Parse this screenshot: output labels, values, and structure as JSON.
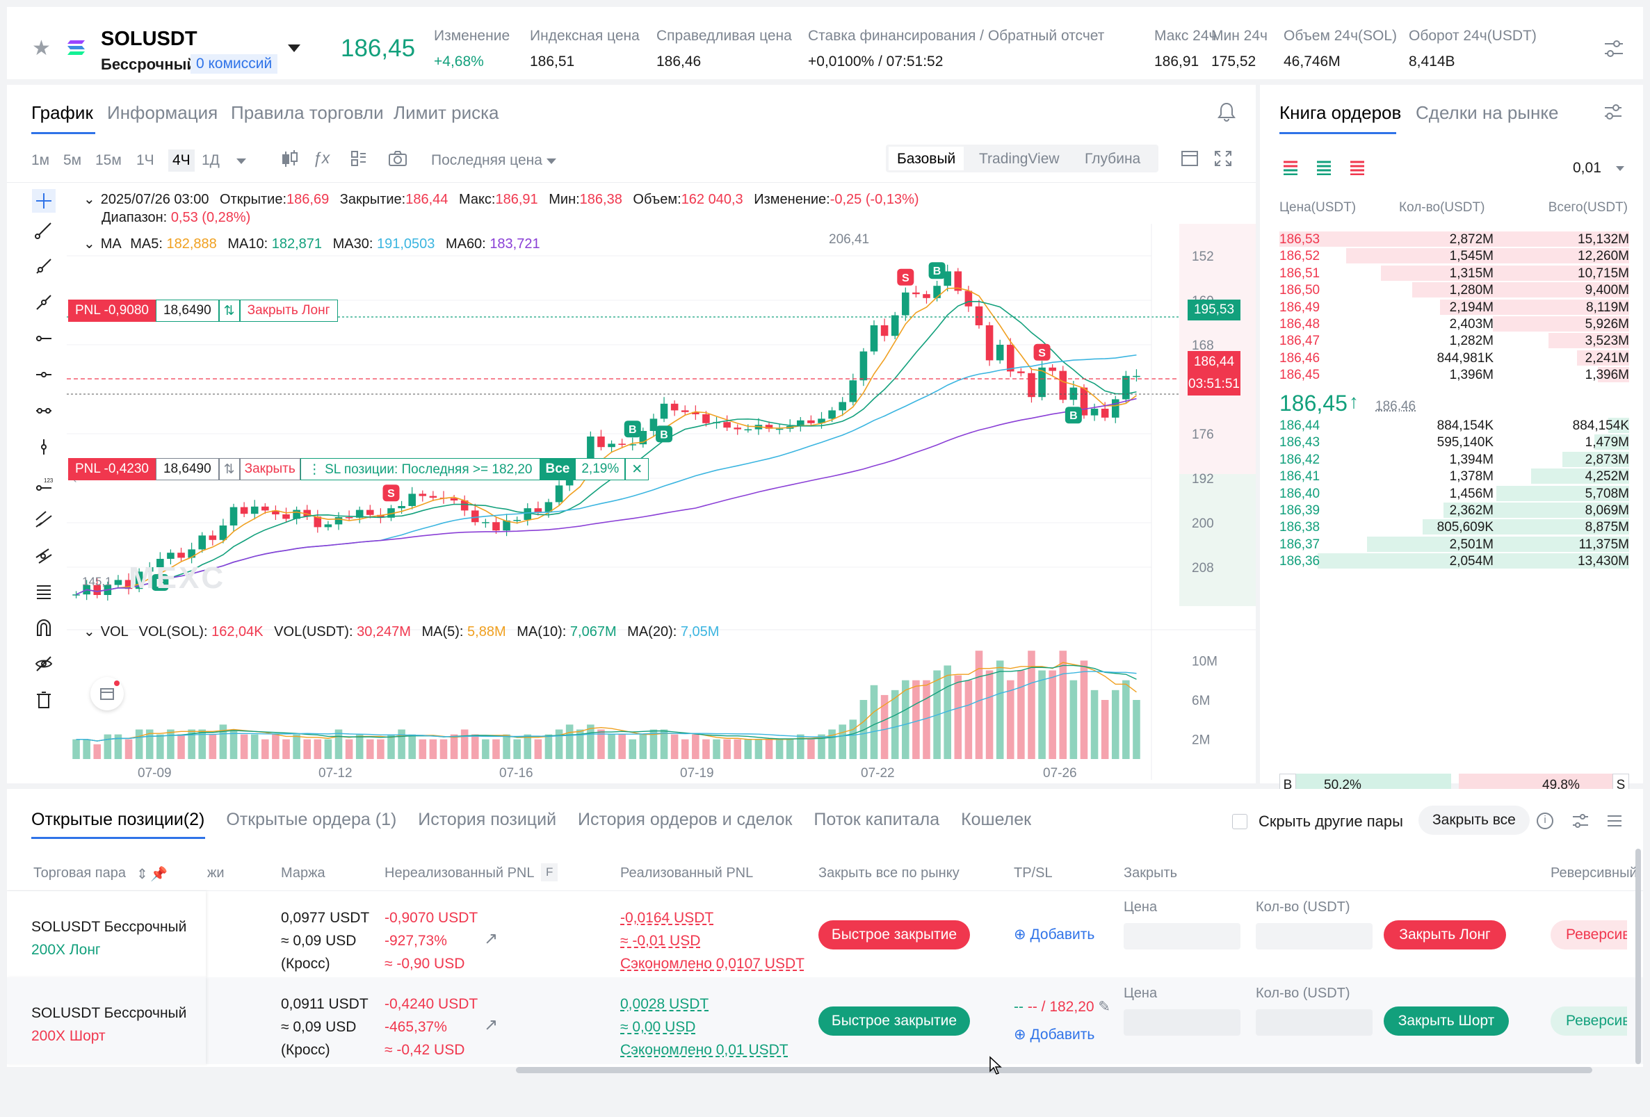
{
  "header": {
    "symbol": "SOLUSDT",
    "contract_type": "Бессрочный",
    "fee_badge": "0 комиссий",
    "last_price": "186,45",
    "stats": [
      {
        "label": "Изменение",
        "value": "+4,68%"
      },
      {
        "label": "Индексная цена",
        "value": "186,51"
      },
      {
        "label": "Справедливая цена",
        "value": "186,46"
      },
      {
        "label": "Ставка финансирования / Обратный отсчет",
        "value": "+0,0100% / 07:51:52"
      },
      {
        "label": "Макс 24ч",
        "value": "186,91"
      },
      {
        "label": "Мин 24ч",
        "value": "175,52"
      },
      {
        "label": "Объем 24ч(SOL)",
        "value": "46,746M"
      },
      {
        "label": "Оборот 24ч(USDT)",
        "value": "8,414B"
      }
    ]
  },
  "chart_panel": {
    "tabs": [
      "График",
      "Информация",
      "Правила торговли",
      "Лимит риска"
    ],
    "active_tab": "График",
    "intervals": [
      "1м",
      "5м",
      "15м",
      "1Ч",
      "4Ч",
      "1Д"
    ],
    "active_interval": "4Ч",
    "price_source": "Последняя цена",
    "views": [
      "Базовый",
      "TradingView",
      "Глубина"
    ],
    "active_view": "Базовый",
    "ohlc": {
      "date": "2025/07/26 03:00",
      "open_label": "Открытие:",
      "open": "186,69",
      "close_label": "Закрытие:",
      "close": "186,44",
      "high_label": "Макс:",
      "high": "186,91",
      "low_label": "Мин:",
      "low": "186,38",
      "volume_label": "Объем:",
      "volume": "162 040,3",
      "change_label": "Изменение:",
      "change": "-0,25 (-0,13%)",
      "range_label": "Диапазон:",
      "range": "0,53 (0,28%)"
    },
    "ma": {
      "title": "MA",
      "items": [
        {
          "label": "MA5:",
          "value": "182,888",
          "color": "#f0a020"
        },
        {
          "label": "MA10:",
          "value": "182,871",
          "color": "#12a07c"
        },
        {
          "label": "MA30:",
          "value": "191,0503",
          "color": "#3bb5e0"
        },
        {
          "label": "MA60:",
          "value": "183,721",
          "color": "#8a3fd6"
        }
      ]
    },
    "vol": {
      "title": "VOL",
      "items": [
        {
          "label": "VOL(SOL):",
          "value": "162,04K",
          "color": "#f0374e"
        },
        {
          "label": "VOL(USDT):",
          "value": "30,247M",
          "color": "#f0374e"
        },
        {
          "label": "MA(5):",
          "value": "5,88M",
          "color": "#f0a020"
        },
        {
          "label": "MA(10):",
          "value": "7,067M",
          "color": "#12a07c"
        },
        {
          "label": "MA(20):",
          "value": "7,05M",
          "color": "#3bb5e0"
        }
      ]
    },
    "position_lines": [
      {
        "pnl": "PNL -0,9080",
        "qty": "18,6490",
        "action": "Закрыть Лонг",
        "price_tag": "195,53"
      },
      {
        "pnl": "PNL -0,4230",
        "qty": "18,6490",
        "action": "Закрыть",
        "sl_text": "SL позиции: Последняя >= 182,20",
        "all": "Все",
        "pct": "2,19%"
      }
    ],
    "current_price_tag": "186,44",
    "countdown_tag": "03:51:51",
    "peak_label": "206,41",
    "low_label": "145,1",
    "watermark": "MEXC",
    "y_ticks": [
      "208",
      "200",
      "192",
      "176",
      "168",
      "160",
      "152"
    ],
    "vol_ticks": [
      "10M",
      "6M",
      "2M"
    ],
    "x_ticks": [
      "07-09",
      "07-12",
      "07-16",
      "07-19",
      "07-22",
      "07-26"
    ]
  },
  "chart_data": {
    "type": "candlestick",
    "y_range": [
      145,
      210
    ],
    "y_ticks": [
      152,
      160,
      168,
      176,
      192,
      200,
      208
    ],
    "x_ticks": [
      "07-09",
      "07-12",
      "07-16",
      "07-19",
      "07-22",
      "07-26"
    ],
    "candles": [
      [
        147,
        147.1
      ],
      [
        147.1,
        148.8
      ],
      [
        148.8,
        147
      ],
      [
        147,
        148.8
      ],
      [
        148.8,
        149.7
      ],
      [
        149.7,
        148.1
      ],
      [
        148.1,
        151.2
      ],
      [
        151.2,
        152
      ],
      [
        152,
        153.5
      ],
      [
        153.5,
        154.6
      ],
      [
        154.6,
        153.7
      ],
      [
        153.7,
        155.2
      ],
      [
        155.2,
        157.7
      ],
      [
        157.7,
        156.9
      ],
      [
        156.9,
        159.5
      ],
      [
        159.5,
        162.8
      ],
      [
        162.8,
        161.6
      ],
      [
        161.6,
        162.9
      ],
      [
        162.9,
        162.2
      ],
      [
        162.2,
        161.5
      ],
      [
        161.5,
        160.7
      ],
      [
        160.7,
        162.3
      ],
      [
        162.3,
        161.1
      ],
      [
        161.1,
        159.2
      ],
      [
        159.2,
        159.7
      ],
      [
        159.7,
        161
      ],
      [
        161,
        160.9
      ],
      [
        160.9,
        162.3
      ],
      [
        162.3,
        161.4
      ],
      [
        161.4,
        160.9
      ],
      [
        160.9,
        162.6
      ],
      [
        162.6,
        163
      ],
      [
        163,
        165.2
      ],
      [
        165.2,
        164.8
      ],
      [
        164.8,
        164.5
      ],
      [
        164.5,
        164.4
      ],
      [
        164.4,
        164
      ],
      [
        164,
        162.2
      ],
      [
        162.2,
        160.1
      ],
      [
        160.1,
        160.1
      ],
      [
        160.1,
        158.6
      ],
      [
        158.6,
        160.4
      ],
      [
        160.4,
        160.5
      ],
      [
        160.5,
        162.6
      ],
      [
        162.6,
        161.9
      ],
      [
        161.9,
        163.7
      ],
      [
        163.7,
        166.7
      ],
      [
        166.7,
        169.9
      ],
      [
        169.9,
        170.2
      ],
      [
        170.2,
        175.5
      ],
      [
        175.5,
        173.6
      ],
      [
        173.6,
        174.2
      ],
      [
        174.2,
        174
      ],
      [
        174,
        174.1
      ],
      [
        174.1,
        176.5
      ],
      [
        176.5,
        178.7
      ],
      [
        178.7,
        181.4
      ],
      [
        181.4,
        180.2
      ],
      [
        180.2,
        179.9
      ],
      [
        179.9,
        179.5
      ],
      [
        179.5,
        177.9
      ],
      [
        177.9,
        178.1
      ],
      [
        178.1,
        177.1
      ],
      [
        177.1,
        176.8
      ],
      [
        176.8,
        176.8
      ],
      [
        176.8,
        177.6
      ],
      [
        177.6,
        176.9
      ],
      [
        176.9,
        176.9
      ],
      [
        176.9,
        177.4
      ],
      [
        177.4,
        178.4
      ],
      [
        178.4,
        177.9
      ],
      [
        177.9,
        178.7
      ],
      [
        178.7,
        180.2
      ],
      [
        180.2,
        181.7
      ],
      [
        181.7,
        185.6
      ],
      [
        185.6,
        190.8
      ],
      [
        190.8,
        195.5
      ],
      [
        195.5,
        193.6
      ],
      [
        193.6,
        197.3
      ],
      [
        197.3,
        201.4
      ],
      [
        201.4,
        201.1
      ],
      [
        201.1,
        200.4
      ],
      [
        200.4,
        202.6
      ],
      [
        202.6,
        205.2
      ],
      [
        205.2,
        201.7
      ],
      [
        201.7,
        198.9
      ],
      [
        198.9,
        195.5
      ],
      [
        195.5,
        189.2
      ],
      [
        189.2,
        192
      ],
      [
        192,
        187.2
      ],
      [
        187.2,
        186.9
      ],
      [
        186.9,
        182.6
      ],
      [
        182.6,
        187.9
      ],
      [
        187.9,
        187.3
      ],
      [
        187.3,
        182.1
      ],
      [
        182.1,
        184.3
      ],
      [
        184.3,
        179.3
      ],
      [
        179.3,
        180.5
      ],
      [
        180.5,
        178.9
      ],
      [
        178.9,
        182.2
      ],
      [
        182.2,
        186.4
      ],
      [
        186.4,
        186.4
      ]
    ],
    "volume": [
      2,
      2,
      1.5,
      2.5,
      2.5,
      2,
      3,
      3,
      2.5,
      3,
      2.5,
      3,
      3,
      2.5,
      3.5,
      3,
      2.5,
      2.5,
      2,
      2.5,
      2,
      2.5,
      2,
      2,
      2,
      3,
      2,
      2.5,
      2,
      2,
      2.5,
      3,
      2.5,
      2,
      2,
      2,
      2.5,
      3,
      2.5,
      2,
      2,
      2.5,
      2,
      2.5,
      2,
      2.5,
      3,
      3.5,
      3,
      3.5,
      3,
      2.5,
      2.5,
      2,
      2.5,
      3,
      3,
      2.5,
      2,
      2.5,
      2,
      2,
      2,
      2,
      2,
      2,
      2,
      2,
      2,
      2.5,
      2,
      2.5,
      3,
      3.5,
      4,
      6,
      7.5,
      6.5,
      7,
      8,
      8,
      8,
      9,
      9.5,
      8.5,
      8,
      11,
      9,
      10,
      8,
      9,
      11,
      9,
      9,
      11,
      8,
      10,
      7,
      6,
      7,
      8,
      6,
      4
    ]
  },
  "order_book": {
    "tabs": [
      "Книга ордеров",
      "Сделки на рынке"
    ],
    "active_tab": "Книга ордеров",
    "precision": "0,01",
    "headers": [
      "Цена(USDT)",
      "Кол-во(USDT)",
      "Всего(USDT)"
    ],
    "asks": [
      {
        "price": "186,53",
        "qty": "2,872M",
        "total": "15,132M",
        "depth": 1.0
      },
      {
        "price": "186,52",
        "qty": "1,545M",
        "total": "12,260M",
        "depth": 0.81
      },
      {
        "price": "186,51",
        "qty": "1,315M",
        "total": "10,715M",
        "depth": 0.71
      },
      {
        "price": "186,50",
        "qty": "1,280M",
        "total": "9,400M",
        "depth": 0.62
      },
      {
        "price": "186,49",
        "qty": "2,194M",
        "total": "8,119M",
        "depth": 0.54
      },
      {
        "price": "186,48",
        "qty": "2,403M",
        "total": "5,926M",
        "depth": 0.39
      },
      {
        "price": "186,47",
        "qty": "1,282M",
        "total": "3,523M",
        "depth": 0.23
      },
      {
        "price": "186,46",
        "qty": "844,981K",
        "total": "2,241M",
        "depth": 0.15
      },
      {
        "price": "186,45",
        "qty": "1,396M",
        "total": "1,396M",
        "depth": 0.09
      }
    ],
    "mid_price": "186,45",
    "mid_mark": "186,46",
    "bids": [
      {
        "price": "186,44",
        "qty": "884,154K",
        "total": "884,154K",
        "depth": 0.06
      },
      {
        "price": "186,43",
        "qty": "595,140K",
        "total": "1,479M",
        "depth": 0.1
      },
      {
        "price": "186,42",
        "qty": "1,394M",
        "total": "2,873M",
        "depth": 0.19
      },
      {
        "price": "186,41",
        "qty": "1,378M",
        "total": "4,252M",
        "depth": 0.28
      },
      {
        "price": "186,40",
        "qty": "1,456M",
        "total": "5,708M",
        "depth": 0.38
      },
      {
        "price": "186,39",
        "qty": "2,362M",
        "total": "8,069M",
        "depth": 0.53
      },
      {
        "price": "186,38",
        "qty": "805,609K",
        "total": "8,875M",
        "depth": 0.59
      },
      {
        "price": "186,37",
        "qty": "2,501M",
        "total": "11,375M",
        "depth": 0.75
      },
      {
        "price": "186,36",
        "qty": "2,054M",
        "total": "13,430M",
        "depth": 0.89
      }
    ],
    "buy_label": "B",
    "buy_pct": "50,2%",
    "sell_pct": "49,8%",
    "sell_label": "S",
    "buy_ratio": 0.502
  },
  "positions_panel": {
    "tabs": [
      "Открытые позиции(2)",
      "Открытые ордера (1)",
      "История позиций",
      "История ордеров и сделок",
      "Поток капитала",
      "Кошелек"
    ],
    "active_tab": "Открытые позиции(2)",
    "hide_pairs_label": "Скрыть другие пары",
    "close_all_label": "Закрыть все",
    "headers": {
      "pair": "Торговая пара",
      "leverage": "жи",
      "margin": "Маржа",
      "unrealized": "Нереализованный PNL",
      "unrealized_badge": "F",
      "realized": "Реализованный PNL",
      "market_close": "Закрыть все по рынку",
      "tpsl": "TP/SL",
      "close": "Закрыть",
      "reverse": "Реверсивный"
    },
    "rows": [
      {
        "pair": "SOLUSDT Бессрочный",
        "side": "200X Лонг",
        "side_color": "green",
        "margin_usdt": "0,0977 USDT",
        "margin_usd": "≈ 0,09 USD",
        "margin_mode": "(Кросс)",
        "upnl_usdt": "-0,9070 USDT",
        "upnl_pct": "-927,73%",
        "upnl_usd": "≈ -0,90 USD",
        "rpnl_usdt": "-0,0164 USDT",
        "rpnl_usd": "≈ -0,01 USD",
        "rpnl_saved": "Сэкономлено 0,0107 USDT",
        "rpnl_color": "red",
        "quick_close": "Быстрое закрытие",
        "tpsl_value": "",
        "add_label": "Добавить",
        "price_label": "Цена",
        "qty_label": "Кол-во (USDT)",
        "close_button": "Закрыть Лонг",
        "reverse_button": "Реверсивн"
      },
      {
        "pair": "SOLUSDT Бессрочный",
        "side": "200X Шорт",
        "side_color": "red",
        "margin_usdt": "0,0911 USDT",
        "margin_usd": "≈ 0,09 USD",
        "margin_mode": "(Кросс)",
        "upnl_usdt": "-0,4240 USDT",
        "upnl_pct": "-465,37%",
        "upnl_usd": "≈ -0,42 USD",
        "rpnl_usdt": "0,0028 USDT",
        "rpnl_usd": "≈ 0,00 USD",
        "rpnl_saved": "Сэкономлено 0,01 USDT",
        "rpnl_color": "green",
        "quick_close": "Быстрое закрытие",
        "tpsl_value": "-- / 182,20",
        "add_label": "Добавить",
        "price_label": "Цена",
        "qty_label": "Кол-во (USDT)",
        "close_button": "Закрыть Шорт",
        "reverse_button": "Реверсивн"
      }
    ]
  }
}
